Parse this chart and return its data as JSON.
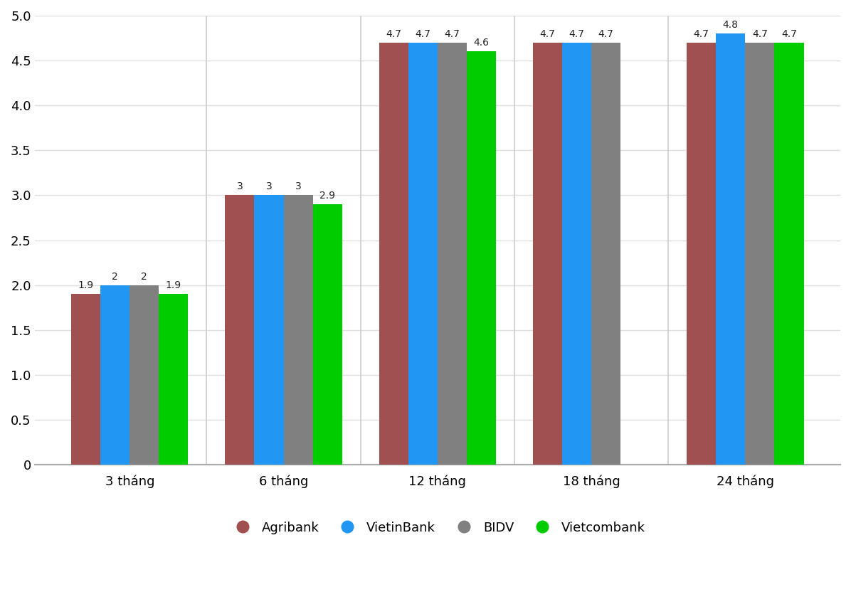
{
  "categories": [
    "3 tháng",
    "6 tháng",
    "12 tháng",
    "18 tháng",
    "24 tháng"
  ],
  "banks": [
    "Agribank",
    "VietinBank",
    "BIDV",
    "Vietcombank"
  ],
  "colors": [
    "#A05050",
    "#2196F3",
    "#808080",
    "#00CC00"
  ],
  "values": {
    "Agribank": [
      1.9,
      3.0,
      4.7,
      4.7,
      4.7
    ],
    "VietinBank": [
      2.0,
      3.0,
      4.7,
      4.7,
      4.8
    ],
    "BIDV": [
      2.0,
      3.0,
      4.7,
      4.7,
      4.7
    ],
    "Vietcombank": [
      1.9,
      2.9,
      4.6,
      null,
      4.7
    ]
  },
  "label_values": {
    "Agribank": [
      "1.9",
      "3",
      "4.7",
      "4.7",
      "4.7"
    ],
    "VietinBank": [
      "2",
      "3",
      "4.7",
      "4.7",
      "4.8"
    ],
    "BIDV": [
      "2",
      "3",
      "4.7",
      "4.7",
      "4.7"
    ],
    "Vietcombank": [
      "1.9",
      "2.9",
      "4.6",
      null,
      "4.7"
    ]
  },
  "ylim": [
    0,
    5.0
  ],
  "yticks": [
    0,
    0.5,
    1.0,
    1.5,
    2.0,
    2.5,
    3.0,
    3.5,
    4.0,
    4.5,
    5.0
  ],
  "background_color": "#FFFFFF",
  "grid_color": "#E0E0E0",
  "bar_width": 0.19,
  "tick_fontsize": 13,
  "legend_fontsize": 13,
  "annotation_fontsize": 10
}
